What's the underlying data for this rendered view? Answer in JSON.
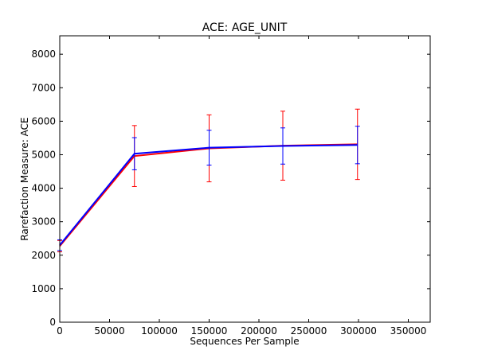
{
  "chart_data": {
    "type": "line",
    "title": "ACE: AGE_UNIT",
    "xlabel": "Sequences Per Sample",
    "ylabel": "Rarefaction Measure: ACE",
    "xlim": [
      0,
      372000
    ],
    "ylim": [
      0,
      8550
    ],
    "xticks": [
      0,
      50000,
      100000,
      150000,
      200000,
      250000,
      300000,
      350000
    ],
    "yticks": [
      0,
      1000,
      2000,
      3000,
      4000,
      5000,
      6000,
      7000,
      8000
    ],
    "grid": false,
    "legend": "none",
    "series": [
      {
        "color": "#ff0000",
        "x": [
          10,
          75000,
          150000,
          224000,
          299000
        ],
        "y": [
          2270,
          4960,
          5190,
          5270,
          5310
        ],
        "err": [
          170,
          910,
          1000,
          1030,
          1050
        ]
      },
      {
        "color": "#0000ff",
        "x": [
          10,
          75000,
          150000,
          224000,
          299000
        ],
        "y": [
          2300,
          5030,
          5210,
          5260,
          5290
        ],
        "err": [
          160,
          480,
          520,
          540,
          560
        ]
      }
    ]
  }
}
